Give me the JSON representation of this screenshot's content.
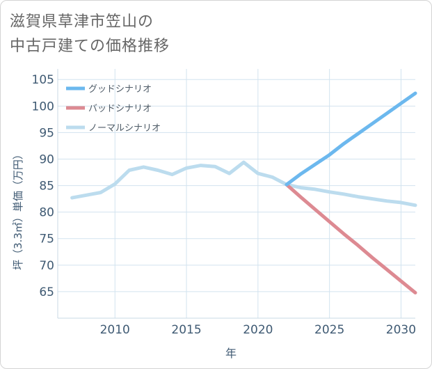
{
  "title": {
    "line1": "滋賀県草津市笠山の",
    "line2": "中古戸建ての価格推移"
  },
  "chart_data": {
    "type": "line",
    "xlabel": "年",
    "ylabel": "坪（3.3㎡）単価（万円）",
    "xlim": [
      2006,
      2031
    ],
    "ylim": [
      60,
      107
    ],
    "x_ticks": [
      2010,
      2015,
      2020,
      2025,
      2030
    ],
    "y_ticks": [
      65,
      70,
      75,
      80,
      85,
      90,
      95,
      100,
      105
    ],
    "grid": true,
    "legend_position": "top-left",
    "series": [
      {
        "name": "グッドシナリオ",
        "color": "#6cb8ee",
        "x": [
          2022,
          2023,
          2024,
          2025,
          2026,
          2027,
          2028,
          2029,
          2030,
          2031
        ],
        "y": [
          85.2,
          87.2,
          89.0,
          90.8,
          92.9,
          94.8,
          96.7,
          98.6,
          100.5,
          102.4
        ]
      },
      {
        "name": "バッドシナリオ",
        "color": "#dd8a92",
        "x": [
          2022,
          2023,
          2024,
          2025,
          2026,
          2027,
          2028,
          2029,
          2030,
          2031
        ],
        "y": [
          85.2,
          82.8,
          80.5,
          78.2,
          75.9,
          73.7,
          71.4,
          69.2,
          67.0,
          64.8
        ]
      },
      {
        "name": "ノーマルシナリオ",
        "color": "#bcdcee",
        "x": [
          2007,
          2008,
          2009,
          2010,
          2011,
          2012,
          2013,
          2014,
          2015,
          2016,
          2017,
          2018,
          2019,
          2020,
          2021,
          2022,
          2023,
          2024,
          2025,
          2026,
          2027,
          2028,
          2029,
          2030,
          2031
        ],
        "y": [
          82.7,
          83.2,
          83.7,
          85.3,
          87.9,
          88.5,
          87.9,
          87.1,
          88.3,
          88.8,
          88.6,
          87.3,
          89.4,
          87.3,
          86.6,
          85.2,
          84.6,
          84.3,
          83.8,
          83.4,
          82.9,
          82.5,
          82.1,
          81.8,
          81.3
        ]
      }
    ]
  }
}
